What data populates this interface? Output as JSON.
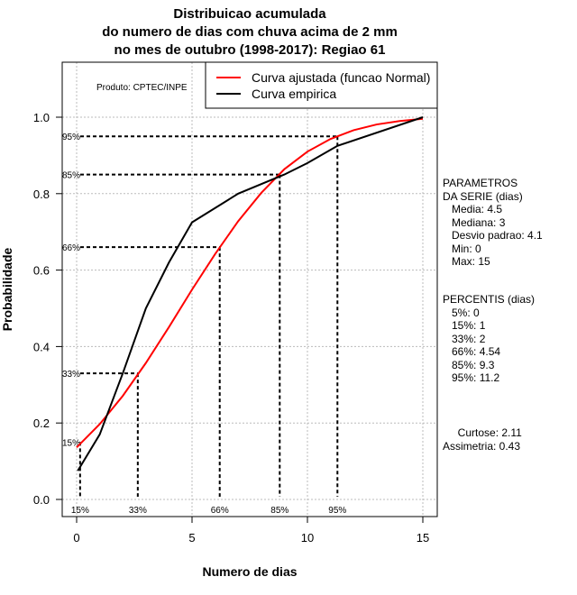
{
  "chart_data": {
    "type": "line",
    "title": [
      "Distribuicao acumulada",
      "do numero de dias com chuva acima de 2 mm",
      "no mes de outubro (1998-2017): Regiao 61"
    ],
    "xlabel": "Numero de dias",
    "ylabel": "Probabilidade",
    "xlim": [
      -0.6,
      15.6
    ],
    "ylim": [
      -0.04,
      1.14
    ],
    "xticks": [
      0,
      5,
      10,
      15
    ],
    "yticks": [
      0.0,
      0.2,
      0.4,
      0.6,
      0.8,
      1.0
    ],
    "xtick_labels": [
      "0",
      "5",
      "10",
      "15"
    ],
    "ytick_labels": [
      "0.0",
      "0.2",
      "0.4",
      "0.6",
      "0.8",
      "1.0"
    ],
    "grid": true,
    "product_label": "Produto: CPTEC/INPE",
    "legend_position": "top-right",
    "series": [
      {
        "name": "Curva ajustada (funcao Normal)",
        "color": "#ff0000",
        "x": [
          0,
          1,
          2,
          3,
          4,
          5,
          6,
          7,
          8,
          9,
          10,
          11,
          12,
          13,
          14,
          15
        ],
        "y": [
          0.136,
          0.197,
          0.271,
          0.357,
          0.451,
          0.549,
          0.642,
          0.728,
          0.802,
          0.864,
          0.91,
          0.943,
          0.966,
          0.981,
          0.99,
          0.996
        ]
      },
      {
        "name": "Curva empirica",
        "color": "#000000",
        "x": [
          0.05,
          1,
          2,
          3,
          4,
          5,
          7,
          9,
          10,
          11.3,
          15
        ],
        "y": [
          0.075,
          0.17,
          0.33,
          0.5,
          0.62,
          0.725,
          0.8,
          0.85,
          0.88,
          0.925,
          1.0
        ]
      }
    ],
    "percentiles": [
      {
        "label": "15%",
        "p": 0.15,
        "x": 0.15
      },
      {
        "label": "33%",
        "p": 0.33,
        "x": 2.65
      },
      {
        "label": "66%",
        "p": 0.66,
        "x": 6.2
      },
      {
        "label": "85%",
        "p": 0.85,
        "x": 8.8
      },
      {
        "label": "95%",
        "p": 0.95,
        "x": 11.3
      }
    ]
  },
  "side": {
    "params": "PARAMETROS\nDA SERIE (dias)\n   Media: 4.5\n   Mediana: 3\n   Desvio padrao: 4.1\n   Min: 0\n   Max: 15",
    "percentis": "PERCENTIS (dias)\n   5%: 0\n   15%: 1\n   33%: 2\n   66%: 4.54\n   85%: 9.3\n   95%: 11.2",
    "extra": "     Curtose: 2.11\nAssimetria: 0.43"
  }
}
